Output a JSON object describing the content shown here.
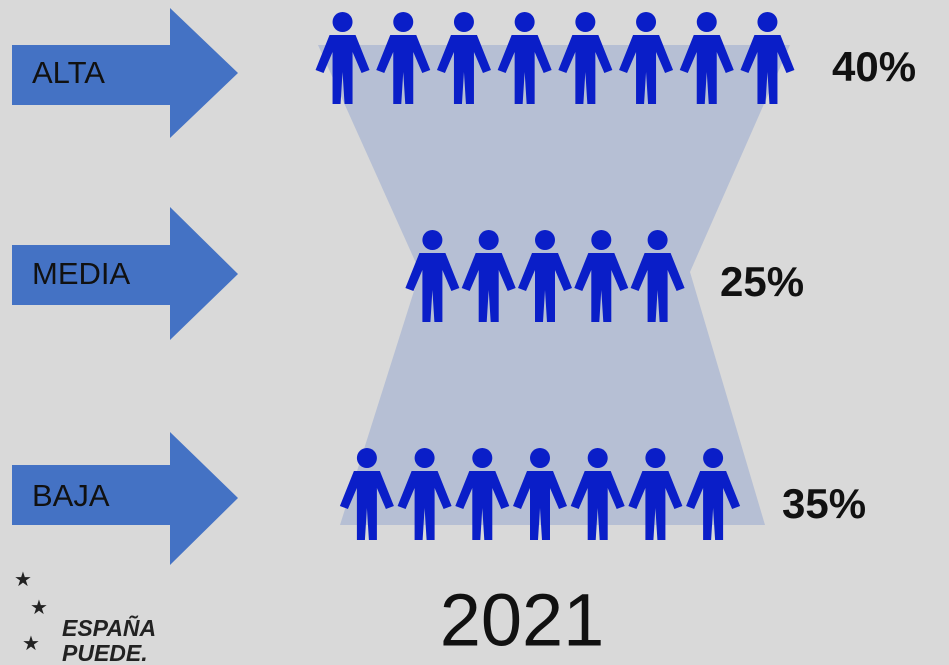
{
  "rows": [
    {
      "label": "ALTA",
      "percent": "40%",
      "icons": 8
    },
    {
      "label": "MEDIA",
      "percent": "25%",
      "icons": 5
    },
    {
      "label": "BAJA",
      "percent": "35%",
      "icons": 7
    }
  ],
  "year": "2021",
  "logo": {
    "line1": "ESPAÑA",
    "line2": "PUEDE."
  }
}
